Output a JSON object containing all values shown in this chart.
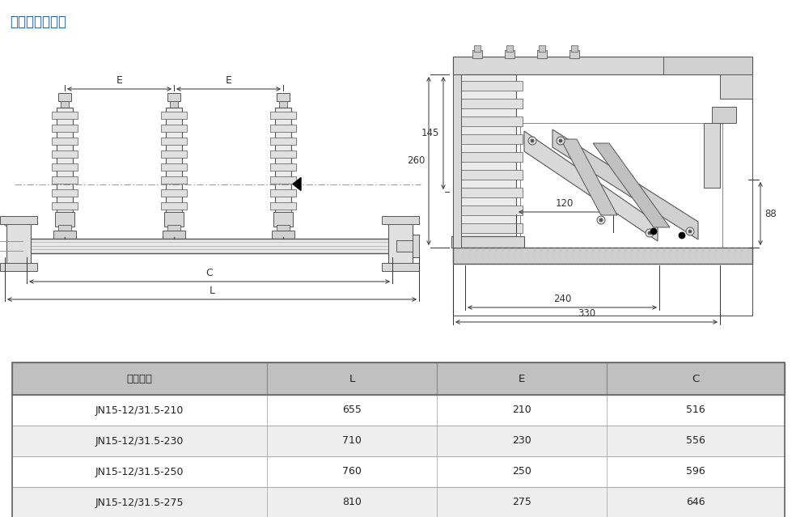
{
  "title": "外形及安装尺寸",
  "title_color": "#1a5fa8",
  "background_color": "#ffffff",
  "table_header_bg": "#c0c0c0",
  "table_row_bg_odd": "#ffffff",
  "table_row_bg_even": "#eeeeee",
  "table_border_color": "#aaaaaa",
  "table_columns": [
    "型号规格",
    "L",
    "E",
    "C"
  ],
  "table_rows": [
    [
      "JN15-12/31.5-210",
      "655",
      "210",
      "516"
    ],
    [
      "JN15-12/31.5-230",
      "710",
      "230",
      "556"
    ],
    [
      "JN15-12/31.5-250",
      "760",
      "250",
      "596"
    ],
    [
      "JN15-12/31.5-275",
      "810",
      "275",
      "646"
    ]
  ]
}
